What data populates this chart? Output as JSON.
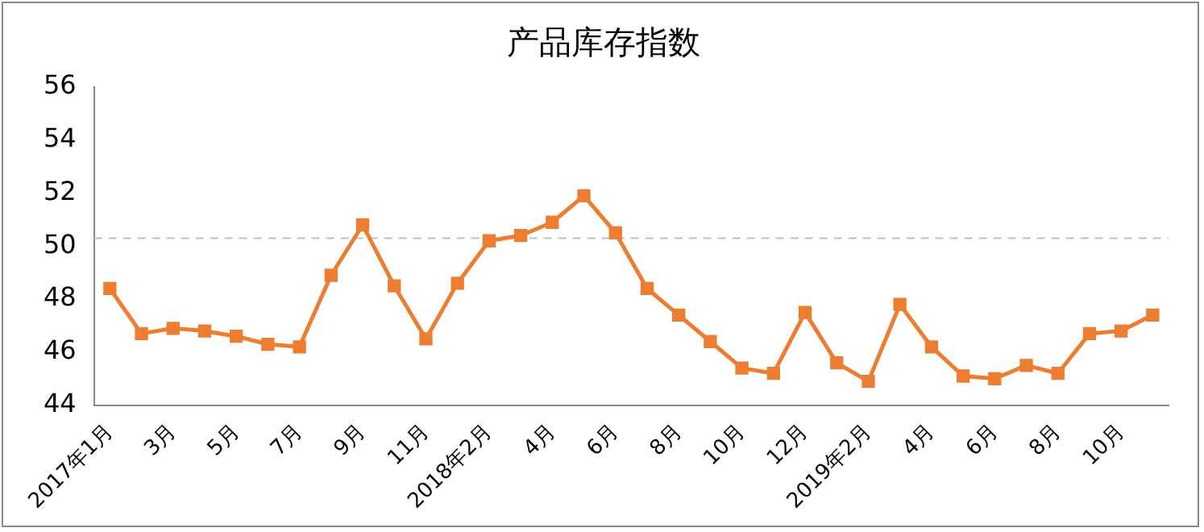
{
  "chart_data": {
    "type": "line",
    "title": "产品库存指数",
    "categories": [
      "2017年1月",
      null,
      "3月",
      null,
      "5月",
      null,
      "7月",
      null,
      "9月",
      null,
      "11月",
      null,
      "2018年2月",
      null,
      "4月",
      null,
      "6月",
      null,
      "8月",
      null,
      "10月",
      null,
      "12月",
      null,
      "2019年2月",
      null,
      "4月",
      null,
      "6月",
      null,
      "8月",
      null,
      "10月",
      null
    ],
    "series": [
      {
        "color": "#ed7d31",
        "values": [
          48.4,
          46.7,
          46.9,
          46.8,
          46.6,
          46.3,
          46.2,
          48.9,
          50.8,
          48.5,
          46.5,
          48.6,
          50.2,
          50.4,
          50.9,
          51.9,
          50.5,
          48.4,
          47.4,
          46.4,
          45.4,
          45.2,
          47.5,
          45.6,
          44.9,
          47.8,
          46.2,
          45.1,
          45.0,
          45.5,
          45.2,
          46.7,
          46.8,
          47.4
        ]
      }
    ],
    "ylim": [
      44,
      56
    ],
    "yticks": [
      44,
      46,
      48,
      50,
      52,
      54,
      56
    ],
    "ref_lines": [
      {
        "axis": "y",
        "value": 50.3,
        "color": "#bfbfbf",
        "line_style": "dashed"
      }
    ],
    "grid": false,
    "legend": false,
    "marker": "square",
    "line_style": "solid"
  }
}
